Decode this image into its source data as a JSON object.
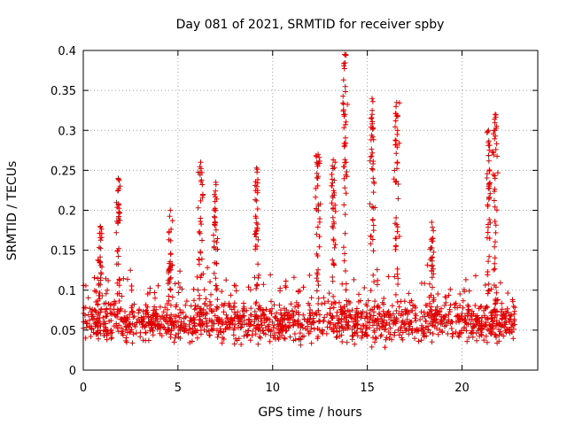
{
  "chart_data": {
    "type": "scatter",
    "title": "Day 081 of 2021, SRMTID for receiver spby",
    "xlabel": "GPS time / hours",
    "ylabel": "SRMTID / TECUs",
    "xlim": [
      0,
      24
    ],
    "ylim": [
      0,
      0.4
    ],
    "xticks": [
      0,
      5,
      10,
      15,
      20
    ],
    "xtick_labels": [
      "0",
      "5",
      "10",
      "15",
      "20"
    ],
    "yticks": [
      0,
      0.05,
      0.1,
      0.15,
      0.2,
      0.25,
      0.3,
      0.35,
      0.4
    ],
    "ytick_labels": [
      "0",
      "0.05",
      "0.1",
      "0.15",
      "0.2",
      "0.25",
      "0.3",
      "0.35",
      "0.4"
    ],
    "grid": true,
    "marker": "plus",
    "color": "#e00000",
    "x_range_of_data": [
      0,
      22.8
    ],
    "background_band": {
      "min": 0.02,
      "max": 0.12,
      "typical": 0.06
    },
    "bursts": [
      {
        "x": 0.9,
        "y": 0.18
      },
      {
        "x": 1.85,
        "y": 0.24
      },
      {
        "x": 4.6,
        "y": 0.2
      },
      {
        "x": 6.2,
        "y": 0.26
      },
      {
        "x": 7.0,
        "y": 0.235
      },
      {
        "x": 9.15,
        "y": 0.253
      },
      {
        "x": 12.4,
        "y": 0.27
      },
      {
        "x": 13.2,
        "y": 0.263
      },
      {
        "x": 13.8,
        "y": 0.395
      },
      {
        "x": 15.25,
        "y": 0.34
      },
      {
        "x": 16.55,
        "y": 0.335
      },
      {
        "x": 18.4,
        "y": 0.185
      },
      {
        "x": 21.4,
        "y": 0.3
      },
      {
        "x": 21.75,
        "y": 0.32
      }
    ]
  }
}
